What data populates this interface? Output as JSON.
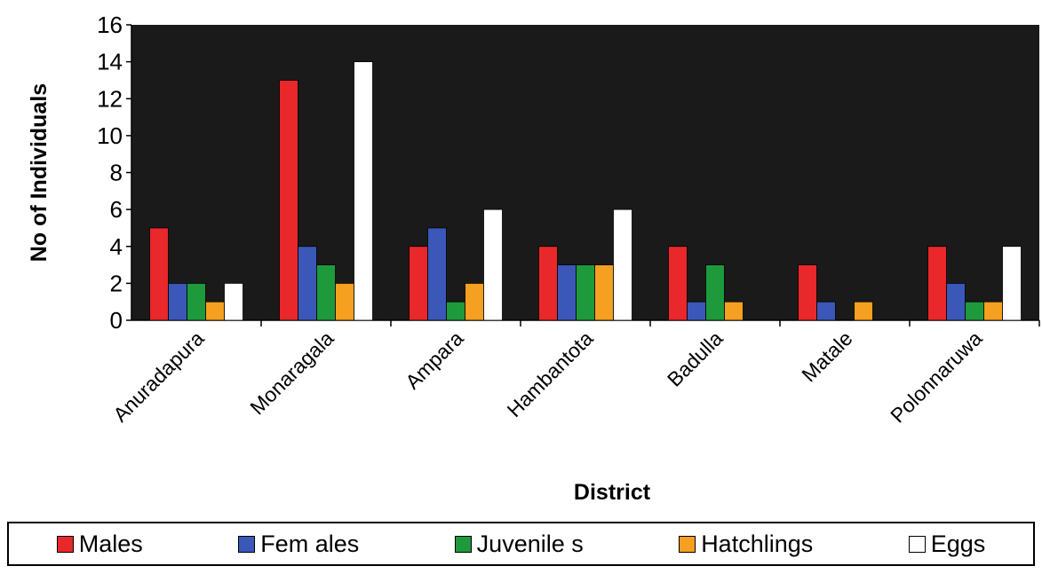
{
  "chart_data": {
    "type": "bar",
    "title": "",
    "xlabel": "District",
    "ylabel": "No of Individuals",
    "ylim": [
      0,
      16
    ],
    "yticks": [
      0,
      2,
      4,
      6,
      8,
      10,
      12,
      14,
      16
    ],
    "categories": [
      "Anuradapura",
      "Monaragala",
      "Ampara",
      "Hambantota",
      "Badulla",
      "Matale",
      "Polonnaruwa"
    ],
    "series": [
      {
        "name": "Males",
        "color": "#e8282b",
        "values": [
          5,
          13,
          4,
          4,
          4,
          3,
          4
        ]
      },
      {
        "name": "Fem ales",
        "color": "#3b57b8",
        "values": [
          2,
          4,
          5,
          3,
          1,
          1,
          2
        ]
      },
      {
        "name": "Juvenile s",
        "color": "#1e9a3c",
        "values": [
          2,
          3,
          1,
          3,
          3,
          0,
          1
        ]
      },
      {
        "name": "Hatchlings",
        "color": "#f5a020",
        "values": [
          1,
          2,
          2,
          3,
          1,
          1,
          1
        ]
      },
      {
        "name": "Eggs",
        "color": "#ffffff",
        "values": [
          2,
          14,
          6,
          6,
          0,
          0,
          4
        ]
      }
    ],
    "grid": false,
    "plot_background": "#1a1a1a",
    "legend_position": "bottom"
  }
}
